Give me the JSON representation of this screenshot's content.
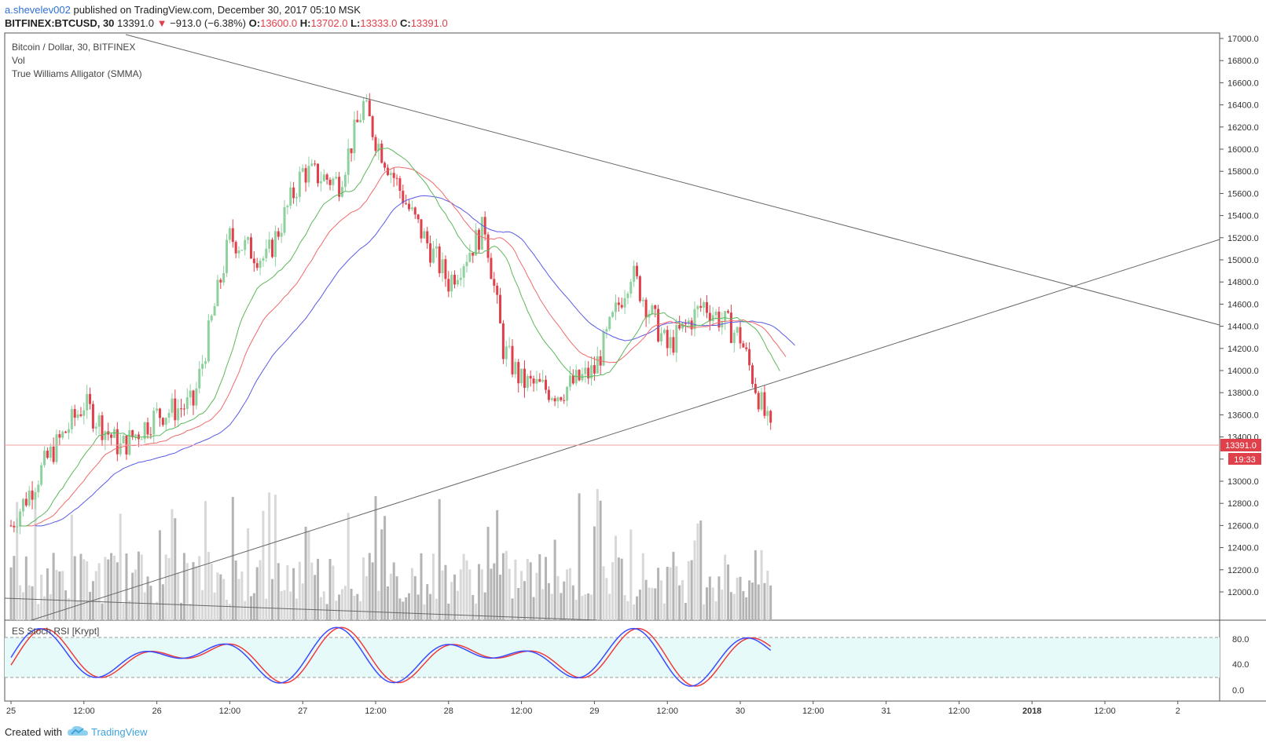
{
  "header": {
    "author": "a.shevelev002",
    "published": "published on TradingView.com, December 30, 2017 05:10 MSK",
    "symbol": "BITFINEX:BTCUSD, 30",
    "last": "13391.0",
    "arrow": "▼",
    "change": "−913.0 (−6.38%)",
    "o_label": "O:",
    "o": "13600.0",
    "h_label": "H:",
    "h": "13702.0",
    "l_label": "L:",
    "l": "13333.0",
    "c_label": "C:",
    "c": "13391.0"
  },
  "legend": {
    "line1": "Bitcoin / Dollar, 30, BITFINEX",
    "line2": "Vol",
    "line3": "True Williams Alligator (SMMA)"
  },
  "oscillator": {
    "title": "ES Stoch RSI [Krypt]",
    "levels": [
      "80.0",
      "40.0",
      "0.0"
    ]
  },
  "price_label": "13391.0",
  "time_label": "19:33",
  "footer": {
    "created": "Created with",
    "brand": "TradingView"
  },
  "colors": {
    "up": "#8fd19e",
    "down": "#e0404a",
    "jaw": "#5a5ae6",
    "teeth": "#ef6b6b",
    "lips": "#5cb85c",
    "stoch_k": "#3b4cff",
    "stoch_d": "#ef3b3b",
    "band": "#e6fafa"
  },
  "chart_data": {
    "type": "candlestick",
    "title": "Bitcoin / Dollar, 30, BITFINEX",
    "price_axis": {
      "ticks": [
        17000,
        16800,
        16600,
        16400,
        16200,
        16000,
        15800,
        15600,
        15400,
        15200,
        15000,
        14800,
        14600,
        14400,
        14200,
        14000,
        13800,
        13600,
        13400,
        13200,
        13000,
        12800,
        12600,
        12400,
        12200,
        12000
      ],
      "range": [
        11850,
        17000
      ]
    },
    "time_axis": {
      "labels": [
        "25",
        "12:00",
        "26",
        "12:00",
        "27",
        "12:00",
        "28",
        "12:00",
        "29",
        "12:00",
        "30",
        "12:00",
        "31",
        "12:00",
        "2018",
        "12:00",
        "2"
      ]
    },
    "approx_close_path": [
      [
        "Dec 25 00:00",
        12600
      ],
      [
        "Dec 25 06:00",
        13200
      ],
      [
        "Dec 25 12:00",
        13700
      ],
      [
        "Dec 25 18:00",
        13300
      ],
      [
        "Dec 26 00:00",
        13600
      ],
      [
        "Dec 26 06:00",
        13700
      ],
      [
        "Dec 26 12:00",
        15200
      ],
      [
        "Dec 26 18:00",
        15000
      ],
      [
        "Dec 27 00:00",
        15800
      ],
      [
        "Dec 27 06:00",
        15700
      ],
      [
        "Dec 27 10:00",
        16400
      ],
      [
        "Dec 27 12:00",
        16100
      ],
      [
        "Dec 27 18:00",
        15400
      ],
      [
        "Dec 28 00:00",
        14800
      ],
      [
        "Dec 28 06:00",
        15300
      ],
      [
        "Dec 28 09:00",
        14200
      ],
      [
        "Dec 28 12:00",
        13900
      ],
      [
        "Dec 28 18:00",
        13800
      ],
      [
        "Dec 29 00:00",
        14000
      ],
      [
        "Dec 29 06:00",
        14900
      ],
      [
        "Dec 29 12:00",
        14200
      ],
      [
        "Dec 29 18:00",
        14600
      ],
      [
        "Dec 30 00:00",
        14300
      ],
      [
        "Dec 30 05:10",
        13391
      ]
    ],
    "last_price": 13391.0,
    "open": 13600.0,
    "high": 13702.0,
    "low": 13333.0,
    "close": 13391.0,
    "trendlines": [
      {
        "name": "descending",
        "from": [
          "Dec 24 20:00",
          17000
        ],
        "to": [
          "Jan 2 06:00",
          14450
        ]
      },
      {
        "name": "ascending",
        "from": [
          "Dec 25 00:00",
          11850
        ],
        "to": [
          "Jan 2 06:00",
          15200
        ]
      }
    ],
    "indicators": [
      "Vol",
      "True Williams Alligator (SMMA)",
      "ES Stoch RSI [Krypt]"
    ],
    "oscillator_levels": [
      80,
      40,
      0
    ]
  }
}
